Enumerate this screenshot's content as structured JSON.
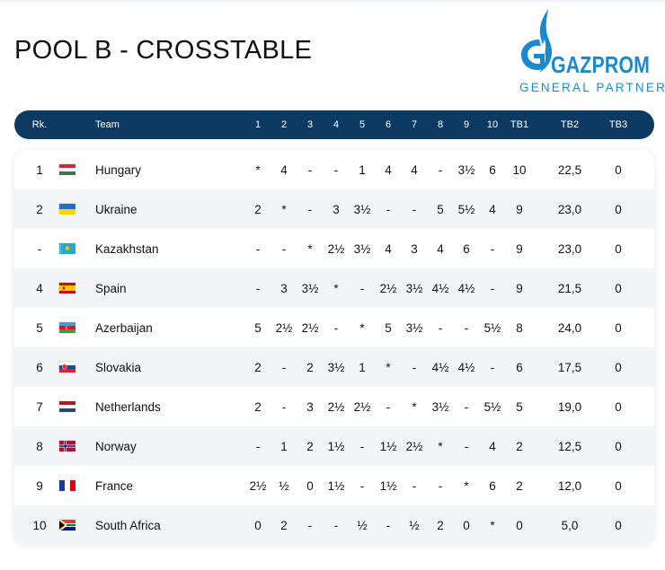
{
  "page_title": "POOL B - CROSSTABLE",
  "sponsor": {
    "name": "GAZPROM",
    "tagline": "GENERAL PARTNER",
    "brand_color": "#1a8ad0"
  },
  "colors": {
    "header_bg": "#0d3a63",
    "alt_row_bg": "#f2f4f8"
  },
  "table": {
    "headers": {
      "rank": "Rk.",
      "team": "Team",
      "rounds": [
        "1",
        "2",
        "3",
        "4",
        "5",
        "6",
        "7",
        "8",
        "9",
        "10"
      ],
      "tb1": "TB1",
      "tb2": "TB2",
      "tb3": "TB3"
    },
    "rows": [
      {
        "rank": "1",
        "flag": "hungary-flag",
        "team": "Hungary",
        "scores": [
          "*",
          "4",
          "-",
          "-",
          "1",
          "4",
          "4",
          "-",
          "3½",
          "6"
        ],
        "tb1": "10",
        "tb2": "22,5",
        "tb3": "0"
      },
      {
        "rank": "2",
        "flag": "ukraine-flag",
        "team": "Ukraine",
        "scores": [
          "2",
          "*",
          "-",
          "3",
          "3½",
          "-",
          "-",
          "5",
          "5½",
          "4"
        ],
        "tb1": "9",
        "tb2": "23,0",
        "tb3": "0"
      },
      {
        "rank": "-",
        "flag": "kazakhstan-flag",
        "team": "Kazakhstan",
        "scores": [
          "-",
          "-",
          "*",
          "2½",
          "3½",
          "4",
          "3",
          "4",
          "6",
          "-"
        ],
        "tb1": "9",
        "tb2": "23,0",
        "tb3": "0"
      },
      {
        "rank": "4",
        "flag": "spain-flag",
        "team": "Spain",
        "scores": [
          "-",
          "3",
          "3½",
          "*",
          "-",
          "2½",
          "3½",
          "4½",
          "4½",
          "-"
        ],
        "tb1": "9",
        "tb2": "21,5",
        "tb3": "0"
      },
      {
        "rank": "5",
        "flag": "azerbaijan-flag",
        "team": "Azerbaijan",
        "scores": [
          "5",
          "2½",
          "2½",
          "-",
          "*",
          "5",
          "3½",
          "-",
          "-",
          "5½"
        ],
        "tb1": "8",
        "tb2": "24,0",
        "tb3": "0"
      },
      {
        "rank": "6",
        "flag": "slovakia-flag",
        "team": "Slovakia",
        "scores": [
          "2",
          "-",
          "2",
          "3½",
          "1",
          "*",
          "-",
          "4½",
          "4½",
          "-"
        ],
        "tb1": "6",
        "tb2": "17,5",
        "tb3": "0"
      },
      {
        "rank": "7",
        "flag": "netherlands-flag",
        "team": "Netherlands",
        "scores": [
          "2",
          "-",
          "3",
          "2½",
          "2½",
          "-",
          "*",
          "3½",
          "-",
          "5½"
        ],
        "tb1": "5",
        "tb2": "19,0",
        "tb3": "0"
      },
      {
        "rank": "8",
        "flag": "norway-flag",
        "team": "Norway",
        "scores": [
          "-",
          "1",
          "2",
          "1½",
          "-",
          "1½",
          "2½",
          "*",
          "-",
          "4"
        ],
        "tb1": "2",
        "tb2": "12,5",
        "tb3": "0"
      },
      {
        "rank": "9",
        "flag": "france-flag",
        "team": "France",
        "scores": [
          "2½",
          "½",
          "0",
          "1½",
          "-",
          "1½",
          "-",
          "-",
          "*",
          "6"
        ],
        "tb1": "2",
        "tb2": "12,0",
        "tb3": "0"
      },
      {
        "rank": "10",
        "flag": "south-africa-flag",
        "team": "South Africa",
        "scores": [
          "0",
          "2",
          "-",
          "-",
          "½",
          "-",
          "½",
          "2",
          "0",
          "*"
        ],
        "tb1": "0",
        "tb2": "5,0",
        "tb3": "0"
      }
    ]
  }
}
